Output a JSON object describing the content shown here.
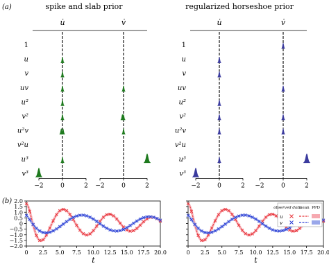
{
  "panel_labels": {
    "a": "(a)",
    "b": "(b)"
  },
  "chart_data": [
    {
      "type": "density",
      "title": "spike and slab prior",
      "color": "#1e7a1e",
      "columns": [
        "u̇",
        "v̇"
      ],
      "terms": [
        "1",
        "u",
        "v",
        "uv",
        "u²",
        "v²",
        "u²v",
        "v²u",
        "u³",
        "v³"
      ],
      "xlim": [
        -2,
        2
      ],
      "xticks": [
        "−2",
        "0",
        "2"
      ],
      "peaks": {
        "u̇": [
          [],
          [
            0
          ],
          [
            0
          ],
          [
            0
          ],
          [
            0
          ],
          [
            0
          ],
          [
            -0.1,
            0.05
          ],
          [],
          [
            0
          ],
          [
            -2
          ]
        ],
        "v̇": [
          [],
          [],
          [],
          [
            0
          ],
          [],
          [
            -0.1,
            0
          ],
          [
            0
          ],
          [],
          [
            2
          ],
          []
        ]
      }
    },
    {
      "type": "density",
      "title": "regularized horseshoe prior",
      "color": "#3b3b9e",
      "columns": [
        "u̇",
        "v̇"
      ],
      "terms": [
        "1",
        "u",
        "v",
        "uv",
        "u²",
        "v²",
        "u²v",
        "v²u",
        "u³",
        "v³"
      ],
      "xlim": [
        -2,
        2
      ],
      "xticks": [
        "−2",
        "0",
        "2"
      ],
      "peaks": {
        "u̇": [
          [],
          [
            0
          ],
          [
            0
          ],
          [],
          [
            0
          ],
          [
            0
          ],
          [
            0
          ],
          [],
          [
            0
          ],
          [
            -2
          ]
        ],
        "v̇": [
          [
            0
          ],
          [],
          [],
          [
            0
          ],
          [],
          [
            0
          ],
          [
            0
          ],
          [],
          [
            2
          ],
          []
        ]
      }
    },
    {
      "type": "line",
      "xlabel": "t",
      "xlim": [
        0,
        20
      ],
      "ylim": [
        -2.0,
        2.0
      ],
      "xticks": [
        "0",
        "2.5",
        "5.0",
        "7.5",
        "10.0",
        "12.5",
        "15.0",
        "17.5",
        "20.0"
      ],
      "yticks": [
        "2.0",
        "1.5",
        "1.0",
        "0.5",
        "0",
        "−0.5",
        "−1.0",
        "−1.5",
        "−2.0"
      ],
      "legend": {
        "observed": "observed data",
        "mean": "mean",
        "ppd": "PPD",
        "u": "u",
        "v": "v"
      },
      "series": [
        {
          "name": "u",
          "color": "#e8343a",
          "band": "#f6a9b0",
          "amp0": 1.75,
          "decay": 0.06,
          "omega": 1.0,
          "phase": 0
        },
        {
          "name": "v",
          "color": "#2b3fd6",
          "band": "#9aa7ea",
          "amp0": 0.88,
          "decay": 0.02,
          "omega": 0.65,
          "phase": 0.6
        }
      ]
    }
  ]
}
